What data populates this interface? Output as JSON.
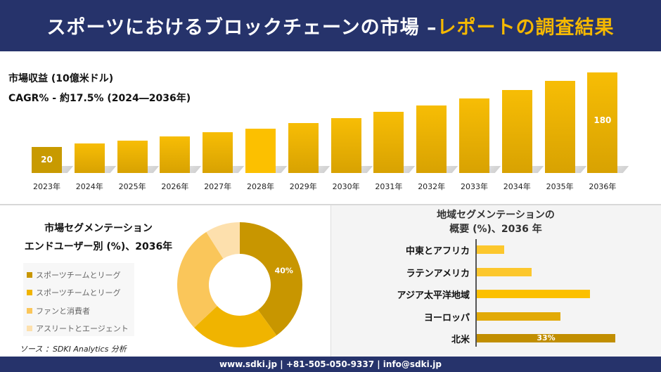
{
  "header": {
    "title_main": "スポーツにおけるブロックチェーンの市場 –",
    "title_accent": "レポートの調査結果"
  },
  "revenue": {
    "label": "市場収益 (10億米ドル)",
    "cagr": "CAGR% - 約17.5% (2024―2036年)"
  },
  "chart_data": [
    {
      "type": "bar",
      "categories": [
        "2023年",
        "2024年",
        "2025年",
        "2026年",
        "2027年",
        "2028年",
        "2029年",
        "2030年",
        "2031年",
        "2032年",
        "2033年",
        "2034年",
        "2035年",
        "2036年"
      ],
      "values": [
        20,
        27,
        34,
        43,
        52,
        59,
        71,
        82,
        95,
        109,
        124,
        142,
        162,
        180
      ],
      "data_labels": {
        "0": "20",
        "13": "180"
      },
      "bar_color": "#f0b400",
      "highlight_color": "#fcc000"
    },
    {
      "type": "pie",
      "title": "市場セグメンテーション エンドユーザー別 (%)、2036年",
      "labels": [
        "スポーツチームとリーグ",
        "スポーツチームとリーグ",
        "ファンと消費者",
        "アスリートとエージェント"
      ],
      "values": [
        40,
        23,
        28,
        9
      ],
      "data_labels": {
        "0": "40%"
      },
      "colors": [
        "#c89600",
        "#f0b400",
        "#fac65a",
        "#fde0ad"
      ]
    },
    {
      "type": "bar",
      "orientation": "horizontal",
      "title": "地域セグメンテーションの 概要 (%)、2036 年",
      "categories": [
        "中東とアフリカ",
        "ラテンアメリカ",
        "アジア太平洋地域",
        "ヨーロッパ",
        "北米"
      ],
      "values": [
        6.5,
        13,
        27,
        20,
        33
      ],
      "data_labels": {
        "4": "33%"
      },
      "colors": [
        "#fcc72d",
        "#fcc72d",
        "#fcc000",
        "#e2aa07",
        "#c18e00"
      ]
    }
  ],
  "segment": {
    "title1": "市場セグメンテーション",
    "title2": "エンドユーザー別 (%)、2036年"
  },
  "region": {
    "title1": "地域セグメンテーションの",
    "title2": "概要 (%)、2036 年"
  },
  "source": "ソース ：SDKI Analytics 分析",
  "footer": "www.sdki.jp | +81-505-050-9337 | info@sdki.jp"
}
